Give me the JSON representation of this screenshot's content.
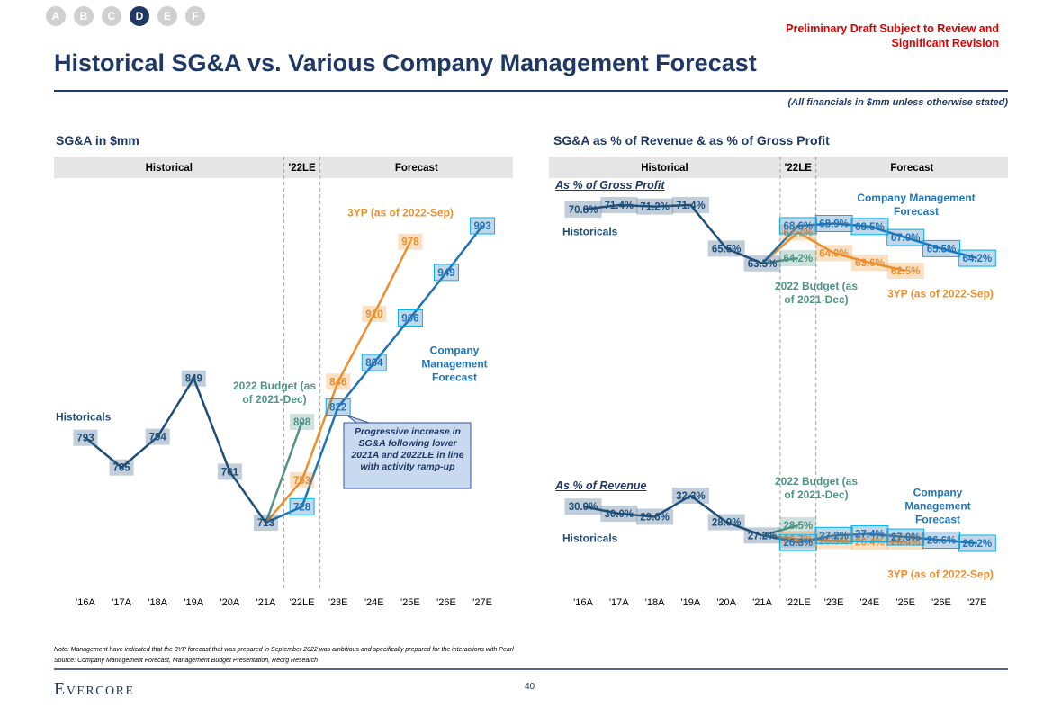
{
  "header": {
    "nav": [
      "A",
      "B",
      "C",
      "D",
      "E",
      "F"
    ],
    "nav_active_index": 3,
    "draft_note": "Preliminary Draft Subject to Review and Significant Revision",
    "title": "Historical SG&A vs. Various Company Management Forecast",
    "subtitle": "(All financials in $mm unless otherwise stated)"
  },
  "chart_data": [
    {
      "type": "line",
      "title": "SG&A in $mm",
      "periods": [
        "Historical",
        "'22LE",
        "Forecast"
      ],
      "categories": [
        "'16A",
        "'17A",
        "'18A",
        "'19A",
        "'20A",
        "'21A",
        "'22LE",
        "'23E",
        "'24E",
        "'25E",
        "'26E",
        "'27E"
      ],
      "series": [
        {
          "name": "Historicals",
          "color": "#1f4e79",
          "values": [
            793,
            765,
            794,
            849,
            761,
            713,
            null,
            null,
            null,
            null,
            null,
            null
          ]
        },
        {
          "name": "2022 Budget (as of 2021-Dec)",
          "color": "#4f9484",
          "values": [
            null,
            null,
            null,
            null,
            null,
            713,
            808,
            null,
            null,
            null,
            null,
            null
          ]
        },
        {
          "name": "3YP (as of 2022-Sep)",
          "color": "#ec8f2c",
          "values": [
            null,
            null,
            null,
            null,
            null,
            713,
            753,
            846,
            910,
            978,
            null,
            null
          ]
        },
        {
          "name": "Company Management Forecast",
          "color": "#1f74b8",
          "values": [
            null,
            null,
            null,
            null,
            null,
            713,
            728,
            822,
            864,
            906,
            949,
            993
          ]
        }
      ],
      "annotation": "Progressive increase in SG&A following lower 2021A and 2022LE in line with activity ramp-up"
    },
    {
      "type": "line",
      "title": "SG&A as % of Revenue & as % of Gross Profit",
      "periods": [
        "Historical",
        "'22LE",
        "Forecast"
      ],
      "categories": [
        "'16A",
        "'17A",
        "'18A",
        "'19A",
        "'20A",
        "'21A",
        "'22LE",
        "'23E",
        "'24E",
        "'25E",
        "'26E",
        "'27E"
      ],
      "panels": [
        {
          "title": "As % of Gross Profit",
          "series": [
            {
              "name": "Historicals",
              "color": "#1f4e79",
              "values": [
                70.8,
                71.4,
                71.2,
                71.4,
                65.5,
                63.5,
                null,
                null,
                null,
                null,
                null,
                null
              ],
              "value_labels": [
                "70.8%",
                "71.4%",
                "71.2%",
                "71.4%",
                "65.5%",
                "63.5%",
                null,
                null,
                null,
                null,
                null,
                null
              ]
            },
            {
              "name": "2022 Budget (as of 2021-Dec)",
              "color": "#4f9484",
              "values": [
                null,
                null,
                null,
                null,
                null,
                63.5,
                64.2,
                null,
                null,
                null,
                null,
                null
              ],
              "value_labels": [
                null,
                null,
                null,
                null,
                null,
                null,
                "64.2%",
                null,
                null,
                null,
                null,
                null
              ]
            },
            {
              "name": "3YP (as of 2022-Sep)",
              "color": "#ec8f2c",
              "values": [
                null,
                null,
                null,
                null,
                null,
                63.5,
                67.7,
                64.9,
                63.6,
                62.5,
                null,
                null
              ],
              "value_labels": [
                null,
                null,
                null,
                null,
                null,
                null,
                "67.7%",
                "64.9%",
                "63.6%",
                "62.5%",
                null,
                null
              ]
            },
            {
              "name": "Company Management Forecast",
              "color": "#1f74b8",
              "values": [
                null,
                null,
                null,
                null,
                null,
                63.5,
                68.6,
                68.9,
                68.5,
                67.0,
                65.5,
                64.2
              ],
              "value_labels": [
                null,
                null,
                null,
                null,
                null,
                null,
                "68.6%",
                "68.9%",
                "68.5%",
                "67.0%",
                "65.5%",
                "64.2%"
              ]
            }
          ]
        },
        {
          "title": "As % of Revenue",
          "series": [
            {
              "name": "Historicals",
              "color": "#1f4e79",
              "values": [
                30.9,
                30.0,
                29.6,
                32.3,
                28.9,
                27.2,
                null,
                null,
                null,
                null,
                null,
                null
              ],
              "value_labels": [
                "30.9%",
                "30.0%",
                "29.6%",
                "32.3%",
                "28.9%",
                "27.2%",
                null,
                null,
                null,
                null,
                null,
                null
              ]
            },
            {
              "name": "2022 Budget (as of 2021-Dec)",
              "color": "#4f9484",
              "values": [
                null,
                null,
                null,
                null,
                null,
                27.2,
                28.5,
                null,
                null,
                null,
                null,
                null
              ],
              "value_labels": [
                null,
                null,
                null,
                null,
                null,
                null,
                "28.5%",
                null,
                null,
                null,
                null,
                null
              ]
            },
            {
              "name": "3YP (as of 2022-Sep)",
              "color": "#ec8f2c",
              "values": [
                null,
                null,
                null,
                null,
                null,
                27.2,
                26.7,
                26.5,
                26.4,
                26.4,
                null,
                null
              ],
              "value_labels": [
                null,
                null,
                null,
                null,
                null,
                null,
                "26.7%",
                "26.5%",
                "26.4%",
                "26.4%",
                null,
                null
              ]
            },
            {
              "name": "Company Management Forecast",
              "color": "#1f74b8",
              "values": [
                null,
                null,
                null,
                null,
                null,
                27.2,
                26.3,
                27.2,
                27.4,
                27.0,
                26.6,
                26.2
              ],
              "value_labels": [
                null,
                null,
                null,
                null,
                null,
                null,
                "26.3%",
                "27.2%",
                "27.4%",
                "27.0%",
                "26.6%",
                "26.2%"
              ]
            }
          ]
        }
      ]
    }
  ],
  "footer": {
    "note": "Note: Management have indicated that the 3YP forecast that was prepared in September 2022 was ambitious and specifically prepared for the interactions with Pearl",
    "source": "Source: Company Management Forecast, Management Budget Presentation, Reorg Research",
    "brand": "Evercore",
    "page": "40"
  }
}
